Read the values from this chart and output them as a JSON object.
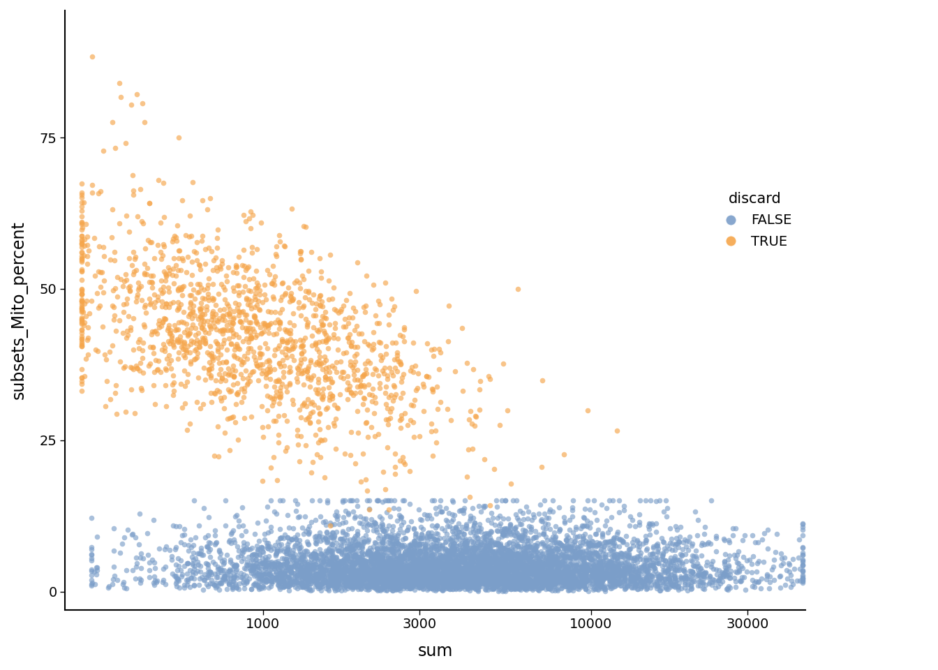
{
  "title": "",
  "xlabel": "sum",
  "ylabel": "subsets_Mito_percent",
  "legend_title": "discard",
  "legend_labels": [
    "FALSE",
    "TRUE"
  ],
  "false_color": "#7B9EC9",
  "true_color": "#F5A54A",
  "background_color": "#ffffff",
  "xlim_log": [
    250,
    45000
  ],
  "ylim": [
    -3,
    96
  ],
  "yticks": [
    0,
    25,
    50,
    75
  ],
  "xticks_log": [
    1000,
    3000,
    10000,
    30000
  ],
  "xtick_labels": [
    "1000",
    "3000",
    "10000",
    "30000"
  ],
  "marker_size": 30,
  "alpha": 0.65,
  "seed": 42,
  "n_false": 7000,
  "n_true": 1500
}
